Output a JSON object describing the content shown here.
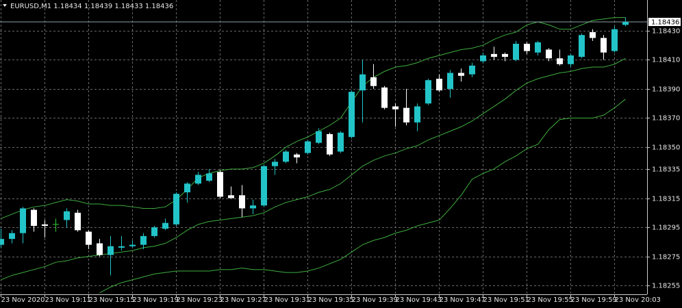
{
  "chart_data": {
    "type": "candlestick",
    "title": "EURUSD,M1  1.18434 1.18439 1.18433 1.18436",
    "categories": [
      "23 Nov 2020",
      null,
      null,
      null,
      "23 Nov 19:11",
      null,
      null,
      null,
      "23 Nov 19:15",
      null,
      null,
      null,
      "23 Nov 19:19",
      null,
      null,
      null,
      "23 Nov 19:23",
      null,
      null,
      null,
      "23 Nov 19:27",
      null,
      null,
      null,
      "23 Nov 19:31",
      null,
      null,
      null,
      "23 Nov 19:35",
      null,
      null,
      null,
      "23 Nov 19:39",
      null,
      null,
      null,
      "23 Nov 19:43",
      null,
      null,
      null,
      "23 Nov 19:47",
      null,
      null,
      null,
      "23 Nov 19:51",
      null,
      null,
      null,
      "23 Nov 19:55",
      null,
      null,
      null,
      "23 Nov 19:59",
      null,
      null,
      null,
      "23 Nov 20:03",
      null
    ],
    "open": [
      1.18283,
      1.18287,
      1.18291,
      1.18307,
      1.18297,
      1.18297,
      1.183,
      1.18305,
      1.18292,
      1.18284,
      1.18276,
      1.18281,
      1.18282,
      1.18283,
      1.18289,
      1.18294,
      1.18297,
      1.18319,
      1.18325,
      1.18327,
      1.18333,
      1.18317,
      1.18317,
      1.18308,
      1.1831,
      1.18337,
      1.1834,
      1.18345,
      1.18346,
      1.18353,
      1.18359,
      1.18347,
      1.18357,
      1.18389,
      1.18398,
      1.18391,
      1.18378,
      1.18377,
      1.18367,
      1.1838,
      1.18397,
      1.1839,
      1.18401,
      1.184,
      1.18409,
      1.18414,
      1.18414,
      1.1841,
      1.18421,
      1.18415,
      1.18417,
      1.18411,
      1.18407,
      1.18412,
      1.18429,
      1.18425,
      1.18416,
      1.18434
    ],
    "high": [
      1.18294,
      1.18293,
      1.18309,
      1.18308,
      1.183,
      1.18301,
      1.18308,
      1.18307,
      1.18293,
      1.18287,
      1.18289,
      1.18289,
      1.18286,
      1.18291,
      1.18296,
      1.18301,
      1.18319,
      1.18326,
      1.18333,
      1.18335,
      1.18334,
      1.18323,
      1.18324,
      1.18314,
      1.18338,
      1.18342,
      1.18348,
      1.18346,
      1.18355,
      1.18363,
      1.1836,
      1.18361,
      1.18389,
      1.1841,
      1.18407,
      1.18392,
      1.1838,
      1.1839,
      1.1838,
      1.18397,
      1.184,
      1.18403,
      1.18404,
      1.18408,
      1.18415,
      1.18419,
      1.18415,
      1.18423,
      1.18422,
      1.18423,
      1.18418,
      1.18417,
      1.18414,
      1.18428,
      1.18431,
      1.18427,
      1.18433,
      1.18439
    ],
    "low": [
      1.18281,
      1.18284,
      1.18284,
      1.18292,
      1.18288,
      1.18292,
      1.18295,
      1.18292,
      1.1828,
      1.18275,
      1.18262,
      1.18279,
      1.18281,
      1.1828,
      1.18288,
      1.18293,
      1.18296,
      1.18312,
      1.18324,
      1.18326,
      1.18315,
      1.18315,
      1.18302,
      1.18304,
      1.18309,
      1.18331,
      1.18339,
      1.18339,
      1.18345,
      1.18352,
      1.18344,
      1.18346,
      1.18356,
      1.18367,
      1.1839,
      1.18376,
      1.18364,
      1.18365,
      1.18361,
      1.18379,
      1.18388,
      1.18384,
      1.18395,
      1.18398,
      1.18408,
      1.1841,
      1.18409,
      1.18409,
      1.18414,
      1.18413,
      1.18409,
      1.18406,
      1.18405,
      1.18411,
      1.18423,
      1.1841,
      1.18415,
      1.18433
    ],
    "close": [
      1.18287,
      1.18291,
      1.18308,
      1.18296,
      1.18296,
      1.18297,
      1.18306,
      1.18293,
      1.18283,
      1.18276,
      1.18282,
      1.18282,
      1.18283,
      1.18289,
      1.18295,
      1.18298,
      1.18318,
      1.18325,
      1.18331,
      1.18332,
      1.18316,
      1.18315,
      1.18308,
      1.1831,
      1.18337,
      1.1834,
      1.18347,
      1.18343,
      1.18354,
      1.18361,
      1.18345,
      1.1836,
      1.18388,
      1.184,
      1.18392,
      1.18377,
      1.18376,
      1.18367,
      1.18378,
      1.18396,
      1.18389,
      1.18401,
      1.18399,
      1.18406,
      1.18413,
      1.18412,
      1.18412,
      1.18421,
      1.18416,
      1.18422,
      1.18411,
      1.18407,
      1.18413,
      1.18427,
      1.18425,
      1.18415,
      1.18431,
      1.18436
    ],
    "bands": [
      {
        "color": "#3fae3f",
        "values": [
          1.18301,
          1.18304,
          1.18307,
          1.18309,
          1.1831,
          1.18312,
          1.18314,
          1.18313,
          1.18311,
          1.18311,
          1.1831,
          1.1831,
          1.18309,
          1.18308,
          1.18308,
          1.18309,
          1.18314,
          1.18321,
          1.18329,
          1.18332,
          1.18334,
          1.18335,
          1.18335,
          1.18336,
          1.18339,
          1.18344,
          1.1835,
          1.18354,
          1.18357,
          1.18361,
          1.18365,
          1.1837,
          1.18381,
          1.18392,
          1.18398,
          1.18402,
          1.18405,
          1.18406,
          1.18408,
          1.18411,
          1.18413,
          1.18415,
          1.18417,
          1.18418,
          1.1842,
          1.18424,
          1.18427,
          1.18429,
          1.18434,
          1.18436,
          1.18434,
          1.18431,
          1.18431,
          1.18434,
          1.18437,
          1.18438,
          1.18439,
          1.18439
        ]
      },
      {
        "color": "#3fae3f",
        "values": [
          1.18259,
          1.18262,
          1.18264,
          1.18266,
          1.18268,
          1.18271,
          1.18272,
          1.18274,
          1.18275,
          1.18276,
          1.18277,
          1.18278,
          1.18279,
          1.18281,
          1.18282,
          1.18284,
          1.18288,
          1.18293,
          1.18297,
          1.18299,
          1.183,
          1.18301,
          1.18302,
          1.18303,
          1.18305,
          1.18309,
          1.18312,
          1.18314,
          1.18316,
          1.18319,
          1.18321,
          1.18325,
          1.18331,
          1.18337,
          1.18341,
          1.18344,
          1.18346,
          1.18349,
          1.18351,
          1.18355,
          1.18358,
          1.18361,
          1.18364,
          1.18368,
          1.18373,
          1.18378,
          1.18383,
          1.18389,
          1.18394,
          1.18397,
          1.18399,
          1.18401,
          1.18402,
          1.18404,
          1.18405,
          1.18405,
          1.18407,
          1.18411
        ]
      },
      {
        "color": "#3fae3f",
        "values": [
          null,
          null,
          null,
          null,
          null,
          null,
          null,
          null,
          null,
          1.1825,
          1.18254,
          1.18257,
          1.18259,
          1.18261,
          1.18263,
          1.18264,
          1.18265,
          1.18265,
          1.18265,
          1.18265,
          1.18266,
          1.18266,
          1.18267,
          1.18266,
          1.18266,
          1.18265,
          1.18264,
          1.18264,
          1.18265,
          1.18267,
          1.1827,
          1.18273,
          1.18278,
          1.18283,
          1.18286,
          1.18288,
          1.18291,
          1.18293,
          1.18296,
          1.18298,
          1.183,
          1.18308,
          1.18317,
          1.18328,
          1.18332,
          1.18335,
          1.1834,
          1.18344,
          1.18349,
          1.18352,
          1.18362,
          1.18369,
          1.1837,
          1.1837,
          1.1837,
          1.18372,
          1.18377,
          1.18383
        ]
      }
    ],
    "bull_color": "#22c4c8",
    "bear_color": "#ffffff",
    "doji_color": "#33cc33",
    "current_price": 1.18436,
    "ylim": [
      1.18249,
      1.18444
    ],
    "yticks": [
      {
        "value": 1.1843,
        "label": "1.18430"
      },
      {
        "value": 1.1841,
        "label": "1.18410"
      },
      {
        "value": 1.1839,
        "label": "1.18390"
      },
      {
        "value": 1.1837,
        "label": "1.18370"
      },
      {
        "value": 1.1835,
        "label": "1.18350"
      },
      1.18335,
      1.18315,
      1.18295,
      1.18275,
      1.18255
    ],
    "grid": true
  }
}
